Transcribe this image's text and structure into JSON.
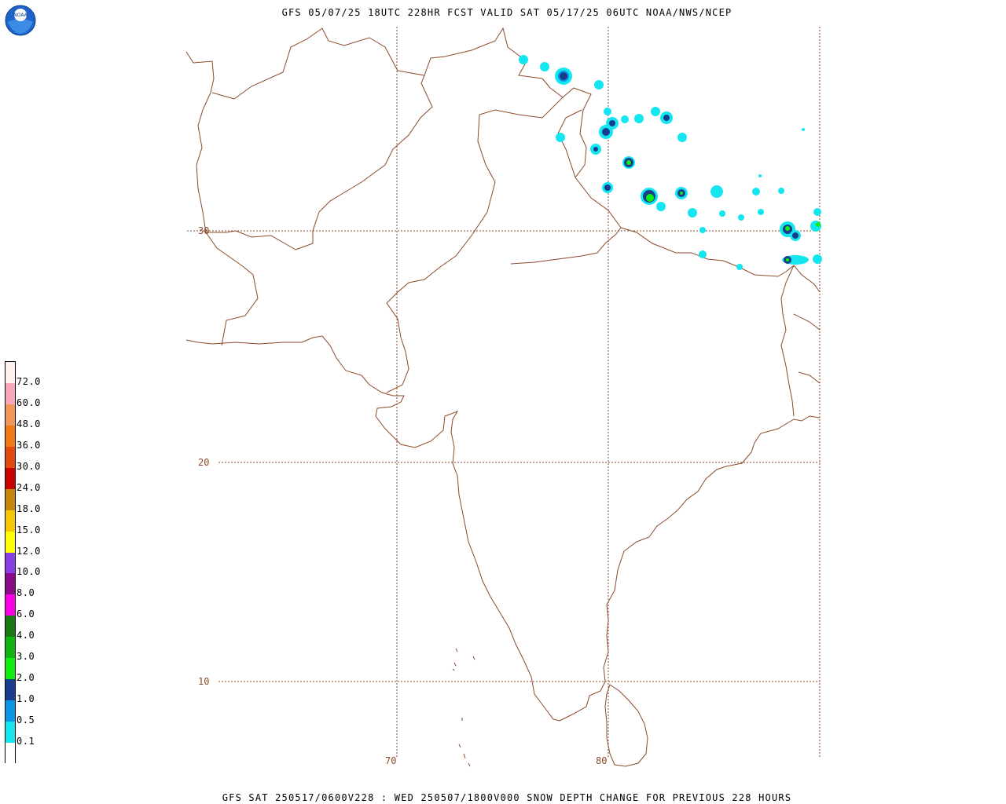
{
  "header": {
    "title": "GFS 05/07/25 18UTC 228HR FCST VALID SAT 05/17/25 06UTC NOAA/NWS/NCEP"
  },
  "footer": {
    "text": "GFS SAT 250517/0600V228 : WED 250507/1800V000 SNOW DEPTH CHANGE FOR PREVIOUS 228 HOURS"
  },
  "logo": {
    "text": "NOAA"
  },
  "map": {
    "lat_labels": [
      "30",
      "20",
      "10"
    ],
    "lon_labels": [
      "70",
      "80"
    ],
    "colors": {
      "boundary": "#8b4a2a",
      "grid": "#8b4a2a"
    }
  },
  "legend": {
    "labels": [
      "72.0",
      "60.0",
      "48.0",
      "36.0",
      "30.0",
      "24.0",
      "18.0",
      "15.0",
      "12.0",
      "10.0",
      "8.0",
      "6.0",
      "4.0",
      "3.0",
      "2.0",
      "1.0",
      "0.5",
      "0.1"
    ],
    "colors": [
      "#fff0f0",
      "#f6a8b8",
      "#f0985a",
      "#f07a14",
      "#e24a10",
      "#c80000",
      "#c8860a",
      "#f4c800",
      "#ffff00",
      "#8a3ee6",
      "#8a0a8a",
      "#ff00e6",
      "#187818",
      "#10b410",
      "#10f010",
      "#1a3c8c",
      "#0a96e6",
      "#14e6f0",
      "#ffffff"
    ]
  },
  "snow_patches": {
    "colors": {
      "light": "#14e6f0",
      "medium": "#0a96e6",
      "dark": "#1a3c8c",
      "green": "#10f010"
    }
  }
}
